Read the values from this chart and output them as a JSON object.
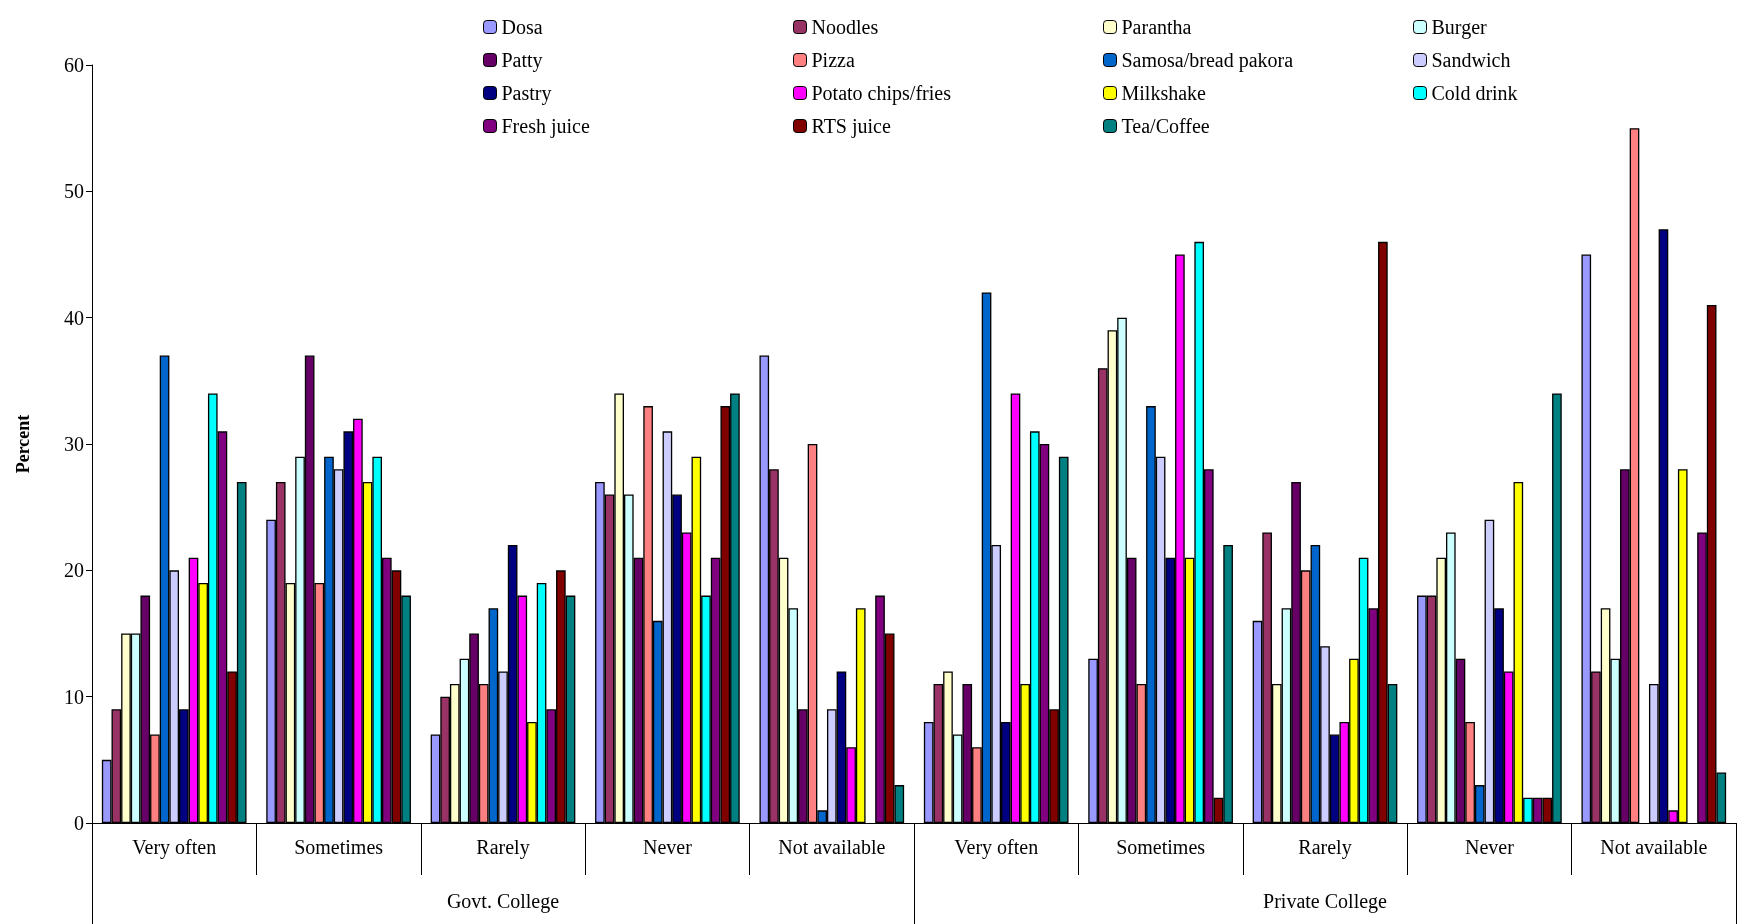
{
  "chart_data": {
    "type": "bar",
    "ylabel": "Percent",
    "categories": [
      "Very often",
      "Sometimes",
      "Rarely",
      "Never",
      "Not available",
      "Very often",
      "Sometimes",
      "Rarely",
      "Never",
      "Not available"
    ],
    "annotations": [
      "Govt. College",
      "Private College"
    ],
    "ylim": [
      0,
      60
    ],
    "yticks": [
      0,
      10,
      20,
      30,
      40,
      50,
      60
    ],
    "grid": false,
    "legend": "top",
    "series": [
      {
        "name": "Dosa",
        "color": "#9999ff",
        "values": [
          5,
          24,
          7,
          27,
          37,
          8,
          13,
          16,
          18,
          45
        ]
      },
      {
        "name": "Noodles",
        "color": "#993366",
        "values": [
          9,
          27,
          10,
          26,
          28,
          11,
          36,
          23,
          18,
          12
        ]
      },
      {
        "name": "Parantha",
        "color": "#ffffcc",
        "values": [
          15,
          19,
          11,
          34,
          21,
          12,
          39,
          11,
          21,
          17
        ]
      },
      {
        "name": "Burger",
        "color": "#ccffff",
        "values": [
          15,
          29,
          13,
          26,
          17,
          7,
          40,
          17,
          23,
          13
        ]
      },
      {
        "name": "Patty",
        "color": "#660066",
        "values": [
          18,
          37,
          15,
          21,
          9,
          11,
          21,
          27,
          13,
          28
        ]
      },
      {
        "name": "Pizza",
        "color": "#ff8080",
        "values": [
          7,
          19,
          11,
          33,
          30,
          6,
          11,
          20,
          8,
          55
        ]
      },
      {
        "name": "Samosa/bread pakora",
        "color": "#0066cc",
        "values": [
          37,
          29,
          17,
          16,
          1,
          42,
          33,
          22,
          3,
          0
        ]
      },
      {
        "name": "Sandwich",
        "color": "#ccccff",
        "values": [
          20,
          28,
          12,
          31,
          9,
          22,
          29,
          14,
          24,
          11
        ]
      },
      {
        "name": "Pastry",
        "color": "#000080",
        "values": [
          9,
          31,
          22,
          26,
          12,
          8,
          21,
          7,
          17,
          47
        ]
      },
      {
        "name": "Potato chips/fries",
        "color": "#ff00ff",
        "values": [
          21,
          32,
          18,
          23,
          6,
          34,
          45,
          8,
          12,
          1
        ]
      },
      {
        "name": "Milkshake",
        "color": "#ffff00",
        "values": [
          19,
          27,
          8,
          29,
          17,
          11,
          21,
          13,
          27,
          28
        ]
      },
      {
        "name": "Cold drink",
        "color": "#00ffff",
        "values": [
          34,
          29,
          19,
          18,
          0,
          31,
          46,
          21,
          2,
          0
        ]
      },
      {
        "name": "Fresh juice",
        "color": "#800080",
        "values": [
          31,
          21,
          9,
          21,
          18,
          30,
          28,
          17,
          2,
          23
        ]
      },
      {
        "name": "RTS juice",
        "color": "#800000",
        "values": [
          12,
          20,
          20,
          33,
          15,
          9,
          2,
          46,
          2,
          41
        ]
      },
      {
        "name": "Tea/Coffee",
        "color": "#008080",
        "values": [
          27,
          18,
          18,
          34,
          3,
          29,
          22,
          11,
          34,
          4
        ]
      }
    ]
  }
}
